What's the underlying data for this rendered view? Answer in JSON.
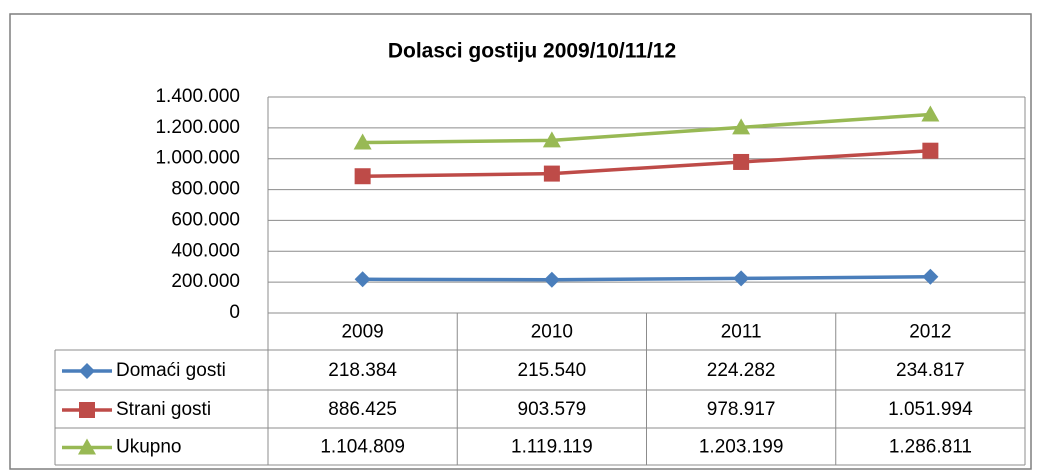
{
  "chart_data": {
    "type": "line",
    "title": "Dolasci gostiju 2009/10/11/12",
    "categories": [
      "2009",
      "2010",
      "2011",
      "2012"
    ],
    "series": [
      {
        "name": "Domaći gosti",
        "color": "#4a7ebb",
        "marker": "diamond",
        "values": [
          218384,
          215540,
          224282,
          234817
        ],
        "value_labels": [
          "218.384",
          "215.540",
          "224.282",
          "234.817"
        ]
      },
      {
        "name": "Strani gosti",
        "color": "#be4b48",
        "marker": "square",
        "values": [
          886425,
          903579,
          978917,
          1051994
        ],
        "value_labels": [
          "886.425",
          "903.579",
          "978.917",
          "1.051.994"
        ]
      },
      {
        "name": "Ukupno",
        "color": "#98b954",
        "marker": "triangle",
        "values": [
          1104809,
          1119119,
          1203199,
          1286811
        ],
        "value_labels": [
          "1.104.809",
          "1.119.119",
          "1.203.199",
          "1.286.811"
        ]
      }
    ],
    "ylim": [
      0,
      1400000
    ],
    "yticks": [
      0,
      {
        "value": 200000,
        "label": "200.000"
      },
      {
        "value": 400000,
        "label": "400.000"
      },
      {
        "value": 600000,
        "label": "600.000"
      },
      {
        "value": 800000,
        "label": "800.000"
      },
      {
        "value": 1000000,
        "label": "1.000.000"
      },
      {
        "value": 1200000,
        "label": "1.200.000"
      },
      {
        "value": 1400000,
        "label": "1.400.000"
      }
    ],
    "grid": true
  }
}
